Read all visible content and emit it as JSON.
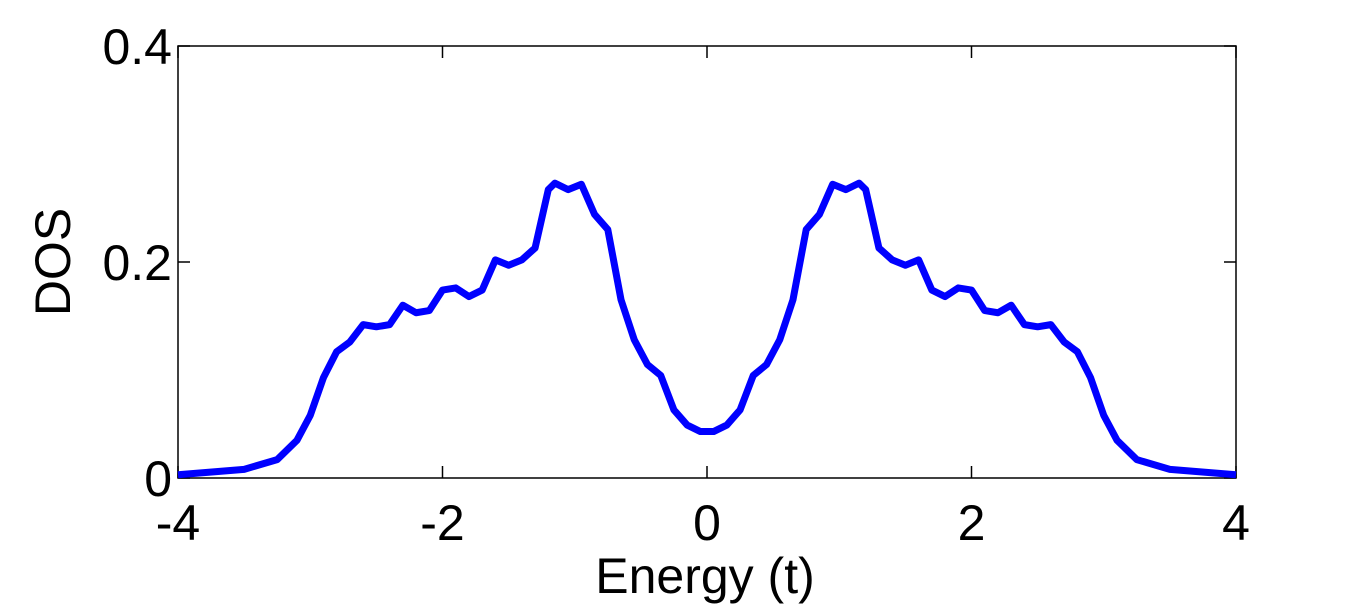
{
  "chart_data": {
    "type": "line",
    "xlabel": "Energy (t)",
    "ylabel": "DOS",
    "x": [
      -4,
      -3.5,
      -3.25,
      -3.1,
      -3,
      -2.9,
      -2.8,
      -2.7,
      -2.6,
      -2.5,
      -2.4,
      -2.3,
      -2.2,
      -2.1,
      -2,
      -1.9,
      -1.8,
      -1.7,
      -1.6,
      -1.5,
      -1.4,
      -1.3,
      -1.2,
      -1.15,
      -1.05,
      -0.95,
      -0.85,
      -0.75,
      -0.65,
      -0.55,
      -0.45,
      -0.35,
      -0.25,
      -0.15,
      -0.05,
      0,
      0.05,
      0.15,
      0.25,
      0.35,
      0.45,
      0.55,
      0.65,
      0.75,
      0.85,
      0.95,
      1.05,
      1.15,
      1.2,
      1.3,
      1.4,
      1.5,
      1.6,
      1.7,
      1.8,
      1.9,
      2,
      2.1,
      2.2,
      2.3,
      2.4,
      2.5,
      2.6,
      2.7,
      2.8,
      2.9,
      3,
      3.1,
      3.25,
      3.5,
      4
    ],
    "values": [
      0.003,
      0.008,
      0.017,
      0.035,
      0.058,
      0.093,
      0.117,
      0.126,
      0.142,
      0.14,
      0.142,
      0.16,
      0.153,
      0.155,
      0.174,
      0.176,
      0.168,
      0.174,
      0.202,
      0.197,
      0.202,
      0.213,
      0.267,
      0.273,
      0.267,
      0.272,
      0.244,
      0.23,
      0.165,
      0.128,
      0.105,
      0.095,
      0.063,
      0.049,
      0.043,
      0.043,
      0.043,
      0.049,
      0.063,
      0.095,
      0.105,
      0.128,
      0.165,
      0.23,
      0.244,
      0.272,
      0.267,
      0.273,
      0.267,
      0.213,
      0.202,
      0.197,
      0.202,
      0.174,
      0.168,
      0.176,
      0.174,
      0.155,
      0.153,
      0.16,
      0.142,
      0.14,
      0.142,
      0.126,
      0.117,
      0.093,
      0.058,
      0.035,
      0.017,
      0.008,
      0.003
    ],
    "color": "#0000ff",
    "xlim": [
      -4,
      4
    ],
    "xticks": [
      -4,
      -2,
      0,
      2,
      4
    ],
    "ylim": [
      0,
      0.4
    ],
    "yticks": [
      0,
      0.2,
      0.4
    ]
  }
}
